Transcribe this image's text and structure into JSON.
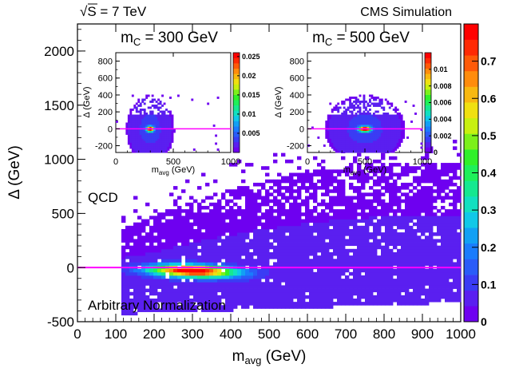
{
  "header": {
    "energy_label": "S = 7 TeV",
    "energy_sqrt_symbol": "√",
    "experiment_label": "CMS Simulation"
  },
  "main_plot": {
    "annotation_qcd": "QCD",
    "annotation_norm": "Arbitrary Normalization",
    "xlabel_main": "m",
    "xlabel_sub": "avg",
    "xlabel_unit": " (GeV)",
    "ylabel": "Δ (GeV)"
  },
  "insets": [
    {
      "title_main": "m",
      "title_sub": "C",
      "title_rest": " = 300 GeV",
      "xlabel_main": "m",
      "xlabel_sub": "avg",
      "xlabel_unit": " (GeV)",
      "ylabel": "Δ (GeV)"
    },
    {
      "title_main": "m",
      "title_sub": "C",
      "title_rest": " = 500 GeV",
      "xlabel_main": "m",
      "xlabel_sub": "avg",
      "xlabel_unit": " (GeV)",
      "ylabel": "Δ (GeV)"
    }
  ],
  "colors": {
    "reference_line": "#ff00ff",
    "palette": [
      "#6e00f0",
      "#5a1ff0",
      "#3a3cf4",
      "#2a5cf8",
      "#1a7cfc",
      "#12a0f4",
      "#10c8e8",
      "#12e0c0",
      "#16e890",
      "#1ef05a",
      "#30f02a",
      "#7cf01a",
      "#c8f010",
      "#f0e010",
      "#f8b810",
      "#ff8c0c",
      "#ff5a08",
      "#ff2a04",
      "#ff0000"
    ]
  },
  "chart_data": [
    {
      "type": "heatmap",
      "name": "main",
      "xlabel": "m_avg (GeV)",
      "ylabel": "Δ (GeV)",
      "xlim": [
        0,
        1000
      ],
      "ylim": [
        -500,
        2250
      ],
      "x_ticks": [
        0,
        100,
        200,
        300,
        400,
        500,
        600,
        700,
        800,
        900,
        1000
      ],
      "y_ticks": [
        -500,
        0,
        500,
        1000,
        1500,
        2000
      ],
      "colorbar": {
        "min": 0,
        "max": 0.8,
        "ticks": [
          0,
          0.1,
          0.2,
          0.3,
          0.4,
          0.5,
          0.6,
          0.7
        ]
      },
      "reference_line_y": 0,
      "hotspot": {
        "x": 300,
        "y": -30,
        "value": 0.8
      },
      "annotations": [
        "QCD",
        "Arbitrary Normalization"
      ]
    },
    {
      "type": "heatmap",
      "name": "inset_mc300",
      "title": "m_C = 300 GeV",
      "xlabel": "m_avg (GeV)",
      "ylabel": "Δ (GeV)",
      "xlim": [
        0,
        1000
      ],
      "ylim": [
        -280,
        900
      ],
      "x_ticks": [
        0,
        500,
        1000
      ],
      "y_ticks": [
        -200,
        0,
        200,
        400,
        600,
        800
      ],
      "colorbar": {
        "min": 0,
        "max": 0.026,
        "ticks": [
          0.005,
          0.01,
          0.015,
          0.02,
          0.025
        ]
      },
      "reference_line_y": 0,
      "hotspot": {
        "x": 300,
        "y": 0,
        "value": 0.026
      }
    },
    {
      "type": "heatmap",
      "name": "inset_mc500",
      "title": "m_C = 500 GeV",
      "xlabel": "m_avg (GeV)",
      "ylabel": "Δ (GeV)",
      "xlim": [
        0,
        1000
      ],
      "ylim": [
        -280,
        900
      ],
      "x_ticks": [
        0,
        500,
        1000
      ],
      "y_ticks": [
        -200,
        0,
        200,
        400,
        600,
        800
      ],
      "colorbar": {
        "min": 0,
        "max": 0.012,
        "ticks": [
          0,
          0.002,
          0.004,
          0.006,
          0.008,
          0.01
        ]
      },
      "reference_line_y": 0,
      "hotspot": {
        "x": 500,
        "y": 0,
        "value": 0.012
      }
    }
  ]
}
